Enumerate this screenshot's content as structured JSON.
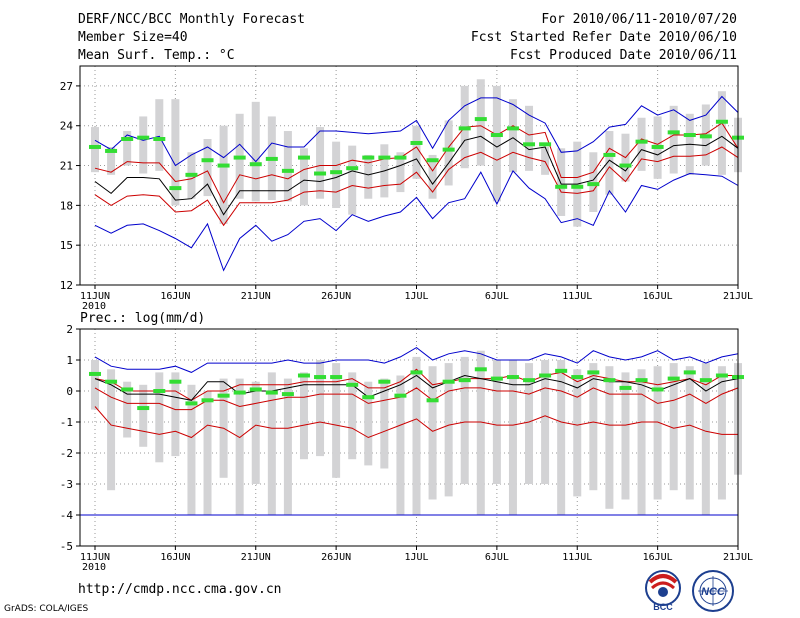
{
  "header": {
    "title": "DERF/NCC/BCC Monthly Forecast",
    "member_size": "Member Size=40",
    "variable": "Mean Surf. Temp.: °C",
    "period": "For 2010/06/11-2010/07/20",
    "start_date": "Fcst Started Refer Date 2010/06/10",
    "produced_date": "Fcst Produced Date 2010/06/11"
  },
  "footer": {
    "url": "http://cmdp.ncc.cma.gov.cn",
    "grads_credit": "GrADS: COLA/IGES",
    "logo_bcc": "BCC",
    "logo_ncc": "NCC"
  },
  "colors": {
    "ensemble_max_min": "#0000cc",
    "spread_red": "#cc0000",
    "ensemble_mean": "#000000",
    "observed_green": "#33dd33",
    "box_gray": "#d3d3d5"
  },
  "chart_data": [
    {
      "type": "line",
      "title": "Mean Surf. Temp.: °C",
      "ylim": [
        12,
        28.5
      ],
      "yticks": [
        12,
        15,
        18,
        21,
        24,
        27
      ],
      "xlim": [
        0,
        40
      ],
      "xticks": [
        {
          "day": 0,
          "label": "11JUN",
          "sub": "2010"
        },
        {
          "day": 5,
          "label": "16JUN"
        },
        {
          "day": 10,
          "label": "21JUN"
        },
        {
          "day": 15,
          "label": "26JUN"
        },
        {
          "day": 20,
          "label": "1JUL"
        },
        {
          "day": 25,
          "label": "6JUL"
        },
        {
          "day": 30,
          "label": "11JUL"
        },
        {
          "day": 35,
          "label": "16JUL"
        },
        {
          "day": 40,
          "label": "21JUL"
        }
      ],
      "series": [
        {
          "name": "max",
          "values": [
            16.5,
            15.9,
            16.5,
            16.6,
            16.1,
            15.5,
            14.8,
            16.6,
            13.1,
            15.5,
            16.5,
            15.3,
            15.8,
            16.8,
            17.0,
            16.1,
            17.3,
            16.8,
            17.2,
            17.5,
            18.6,
            17.0,
            18.2,
            18.5,
            20.5,
            18.1,
            20.6,
            19.3,
            18.5,
            16.7,
            17.0,
            16.5,
            19.1,
            17.5,
            19.5,
            19.2,
            19.9,
            20.4,
            20.3,
            20.2,
            19.5
          ],
          "color_key": "ensemble_max_min",
          "role": "min"
        },
        {
          "name": "upper",
          "values": [
            22.9,
            22.2,
            23.3,
            22.9,
            23.2,
            21.0,
            21.8,
            22.4,
            21.6,
            22.6,
            21.3,
            22.7,
            22.4,
            22.4,
            23.6,
            23.6,
            23.5,
            23.4,
            23.5,
            23.6,
            24.4,
            22.3,
            24.4,
            25.5,
            26.1,
            26.1,
            25.6,
            24.8,
            24.2,
            22.0,
            22.1,
            22.8,
            23.9,
            24.1,
            25.5,
            24.8,
            25.2,
            24.4,
            24.8,
            26.2,
            25.0
          ],
          "color_key": "ensemble_max_min",
          "role": "max"
        },
        {
          "name": "upper_red",
          "values": [
            20.8,
            20.5,
            21.3,
            21.2,
            21.2,
            19.8,
            20.0,
            20.6,
            18.2,
            20.3,
            20.0,
            20.3,
            20.0,
            20.7,
            21.0,
            21.0,
            21.4,
            21.2,
            21.5,
            21.6,
            22.4,
            20.6,
            22.4,
            23.9,
            24.0,
            23.3,
            24.0,
            23.3,
            23.5,
            20.1,
            20.1,
            20.5,
            22.3,
            21.6,
            23.0,
            22.6,
            23.3,
            23.3,
            23.4,
            24.2,
            22.3
          ],
          "color_key": "spread_red",
          "role": "mean+std"
        },
        {
          "name": "mean",
          "values": [
            19.8,
            18.9,
            20.1,
            20.1,
            20.0,
            18.4,
            18.5,
            19.6,
            17.3,
            19.1,
            19.1,
            19.1,
            19.1,
            19.9,
            19.8,
            20.1,
            20.6,
            20.3,
            20.6,
            21.0,
            21.5,
            19.6,
            21.2,
            22.9,
            23.2,
            22.4,
            23.1,
            22.2,
            22.4,
            19.6,
            19.6,
            19.9,
            21.4,
            20.6,
            22.2,
            21.8,
            22.5,
            22.6,
            22.5,
            23.2,
            22.3
          ],
          "color_key": "ensemble_mean",
          "role": "mean"
        },
        {
          "name": "lower_red",
          "values": [
            18.8,
            18.0,
            18.7,
            18.8,
            18.7,
            17.5,
            17.6,
            18.4,
            16.5,
            18.2,
            18.2,
            18.2,
            18.4,
            19.0,
            19.1,
            19.0,
            19.5,
            19.3,
            19.5,
            19.6,
            20.5,
            19.0,
            20.7,
            21.6,
            22.0,
            21.4,
            22.0,
            21.6,
            21.3,
            19.0,
            18.9,
            19.1,
            20.9,
            19.8,
            21.5,
            21.3,
            21.7,
            21.7,
            21.8,
            22.4,
            21.6
          ],
          "color_key": "spread_red",
          "role": "mean-std"
        },
        {
          "name": "observed",
          "values": [
            22.4,
            22.1,
            23.0,
            23.1,
            23.0,
            19.3,
            20.3,
            21.4,
            21.0,
            21.6,
            21.1,
            21.5,
            20.6,
            21.6,
            20.4,
            20.5,
            20.8,
            21.6,
            21.6,
            21.6,
            22.7,
            21.4,
            22.2,
            23.8,
            24.5,
            23.3,
            23.8,
            22.6,
            22.6,
            19.4,
            19.4,
            19.6,
            21.8,
            21.0,
            22.8,
            22.4,
            23.5,
            23.3,
            23.2,
            24.3,
            23.1
          ],
          "color_key": "observed_green",
          "role": "observed"
        }
      ],
      "boxes": [
        [
          20.5,
          23.9
        ],
        [
          20.3,
          22.4
        ],
        [
          21.0,
          23.6
        ],
        [
          20.4,
          24.7
        ],
        [
          20.6,
          26.0
        ],
        [
          18.0,
          26.0
        ],
        [
          18.5,
          22.0
        ],
        [
          18.7,
          23.0
        ],
        [
          16.6,
          24.0
        ],
        [
          18.5,
          24.9
        ],
        [
          18.3,
          25.8
        ],
        [
          18.4,
          24.7
        ],
        [
          18.3,
          23.6
        ],
        [
          18.0,
          22.3
        ],
        [
          18.5,
          23.9
        ],
        [
          17.8,
          22.8
        ],
        [
          17.3,
          22.5
        ],
        [
          18.5,
          21.8
        ],
        [
          18.6,
          22.6
        ],
        [
          19.0,
          22.0
        ],
        [
          20.0,
          24.0
        ],
        [
          18.5,
          21.8
        ],
        [
          19.5,
          24.4
        ],
        [
          20.8,
          27.0
        ],
        [
          21.0,
          27.5
        ],
        [
          18.3,
          27.0
        ],
        [
          20.5,
          26.0
        ],
        [
          20.6,
          25.5
        ],
        [
          20.3,
          22.4
        ],
        [
          17.2,
          22.3
        ],
        [
          16.4,
          22.8
        ],
        [
          17.5,
          22.0
        ],
        [
          18.8,
          23.6
        ],
        [
          19.8,
          23.4
        ],
        [
          20.6,
          24.6
        ],
        [
          20.0,
          24.7
        ],
        [
          20.4,
          25.5
        ],
        [
          20.3,
          24.9
        ],
        [
          21.0,
          25.6
        ],
        [
          20.3,
          26.6
        ],
        [
          20.5,
          24.6
        ]
      ]
    },
    {
      "type": "line",
      "title": "Prec.: log(mm/d)",
      "ylim": [
        -5,
        2
      ],
      "yticks": [
        -5,
        -4,
        -3,
        -2,
        -1,
        0,
        1,
        2
      ],
      "xlim": [
        0,
        40
      ],
      "xticks": [
        {
          "day": 0,
          "label": "11JUN",
          "sub": "2010"
        },
        {
          "day": 5,
          "label": "16JUN"
        },
        {
          "day": 10,
          "label": "21JUN"
        },
        {
          "day": 15,
          "label": "26JUN"
        },
        {
          "day": 20,
          "label": "1JUL"
        },
        {
          "day": 25,
          "label": "6JUL"
        },
        {
          "day": 30,
          "label": "11JUL"
        },
        {
          "day": 35,
          "label": "16JUL"
        },
        {
          "day": 40,
          "label": "21JUL"
        }
      ],
      "min_level": -4,
      "series": [
        {
          "name": "upper",
          "values": [
            1.1,
            0.8,
            0.7,
            0.7,
            0.7,
            0.8,
            0.6,
            0.9,
            0.9,
            0.9,
            0.9,
            0.9,
            1.0,
            0.9,
            0.9,
            1.0,
            1.0,
            1.0,
            0.9,
            1.1,
            1.4,
            1.0,
            1.2,
            1.3,
            1.2,
            1.0,
            1.0,
            1.0,
            1.2,
            1.1,
            0.9,
            1.3,
            1.1,
            1.0,
            1.1,
            1.3,
            1.0,
            1.1,
            0.9,
            1.1,
            1.2
          ],
          "color_key": "ensemble_max_min",
          "role": "max"
        },
        {
          "name": "upper_red",
          "values": [
            0.4,
            0.3,
            0.0,
            0.0,
            0.0,
            0.0,
            -0.3,
            0.0,
            0.0,
            0.2,
            0.2,
            0.2,
            0.2,
            0.3,
            0.3,
            0.3,
            0.4,
            0.1,
            0.1,
            0.3,
            0.7,
            0.2,
            0.3,
            0.4,
            0.4,
            0.4,
            0.5,
            0.3,
            0.5,
            0.6,
            0.3,
            0.5,
            0.4,
            0.3,
            0.3,
            0.2,
            0.3,
            0.4,
            0.2,
            0.5,
            0.5
          ],
          "color_key": "spread_red",
          "role": "mean+std"
        },
        {
          "name": "mean",
          "values": [
            0.4,
            0.2,
            -0.1,
            -0.1,
            -0.1,
            -0.2,
            -0.3,
            0.3,
            0.3,
            -0.1,
            0.0,
            0.0,
            0.1,
            0.2,
            0.2,
            0.2,
            0.2,
            -0.2,
            0.0,
            0.2,
            0.5,
            0.1,
            0.3,
            0.5,
            0.4,
            0.3,
            0.2,
            0.2,
            0.4,
            0.3,
            0.1,
            0.4,
            0.3,
            0.3,
            0.2,
            0.0,
            0.2,
            0.4,
            0.0,
            0.3,
            0.4
          ],
          "color_key": "ensemble_mean",
          "role": "mean"
        },
        {
          "name": "lower_red",
          "values": [
            0.1,
            -0.2,
            -0.4,
            -0.4,
            -0.4,
            -0.6,
            -0.6,
            -0.3,
            -0.3,
            -0.5,
            -0.4,
            -0.3,
            -0.2,
            -0.2,
            -0.1,
            -0.1,
            -0.1,
            -0.4,
            -0.3,
            -0.2,
            0.1,
            -0.3,
            0.0,
            0.1,
            0.1,
            0.0,
            0.0,
            -0.1,
            0.1,
            0.0,
            -0.2,
            0.1,
            -0.1,
            -0.1,
            -0.1,
            -0.4,
            -0.3,
            -0.1,
            -0.4,
            -0.1,
            0.1
          ],
          "color_key": "spread_red",
          "role": "mean-std"
        },
        {
          "name": "lower",
          "values": [
            -0.5,
            -1.1,
            -1.2,
            -1.3,
            -1.4,
            -1.3,
            -1.5,
            -1.1,
            -1.2,
            -1.5,
            -1.1,
            -1.2,
            -1.2,
            -1.1,
            -1.0,
            -1.1,
            -1.2,
            -1.5,
            -1.3,
            -1.1,
            -0.9,
            -1.3,
            -1.1,
            -1.0,
            -1.0,
            -1.1,
            -1.1,
            -1.0,
            -0.8,
            -1.0,
            -1.1,
            -1.0,
            -1.1,
            -1.1,
            -1.0,
            -1.0,
            -1.2,
            -1.1,
            -1.3,
            -1.4,
            -1.4
          ],
          "color_key": "spread_red",
          "role": "min"
        },
        {
          "name": "observed",
          "values": [
            0.55,
            0.3,
            0.05,
            -0.55,
            0.0,
            0.3,
            -0.4,
            -0.3,
            -0.15,
            -0.05,
            0.05,
            -0.05,
            -0.1,
            0.5,
            0.45,
            0.45,
            0.2,
            -0.2,
            0.3,
            -0.15,
            0.6,
            -0.3,
            0.3,
            0.35,
            0.7,
            0.4,
            0.45,
            0.35,
            0.5,
            0.65,
            0.45,
            0.6,
            0.35,
            0.1,
            0.35,
            0.05,
            0.4,
            0.6,
            0.35,
            0.5,
            0.45
          ],
          "color_key": "observed_green",
          "role": "observed"
        }
      ],
      "boxes": [
        [
          -0.6,
          1.0
        ],
        [
          -3.2,
          0.7
        ],
        [
          -1.5,
          0.3
        ],
        [
          -1.8,
          0.2
        ],
        [
          -2.3,
          0.6
        ],
        [
          -2.1,
          0.6
        ],
        [
          -4.0,
          0.2
        ],
        [
          -4.0,
          0.0
        ],
        [
          -2.8,
          0.4
        ],
        [
          -4.0,
          0.4
        ],
        [
          -3.0,
          0.3
        ],
        [
          -4.0,
          0.6
        ],
        [
          -4.0,
          0.4
        ],
        [
          -2.2,
          0.6
        ],
        [
          -2.1,
          1.0
        ],
        [
          -2.8,
          0.9
        ],
        [
          -2.2,
          0.6
        ],
        [
          -2.4,
          0.3
        ],
        [
          -2.5,
          0.4
        ],
        [
          -4.0,
          0.5
        ],
        [
          -4.0,
          1.1
        ],
        [
          -3.5,
          0.8
        ],
        [
          -3.4,
          0.9
        ],
        [
          -3.0,
          1.1
        ],
        [
          -4.0,
          1.3
        ],
        [
          -3.0,
          1.0
        ],
        [
          -4.0,
          1.0
        ],
        [
          -3.0,
          0.9
        ],
        [
          -3.0,
          1.0
        ],
        [
          -4.0,
          1.0
        ],
        [
          -3.4,
          0.7
        ],
        [
          -3.2,
          0.9
        ],
        [
          -3.8,
          0.8
        ],
        [
          -3.5,
          0.6
        ],
        [
          -4.0,
          0.7
        ],
        [
          -3.5,
          0.8
        ],
        [
          -3.2,
          0.9
        ],
        [
          -3.5,
          0.8
        ],
        [
          -4.0,
          0.9
        ],
        [
          -3.5,
          0.8
        ],
        [
          -2.7,
          0.9
        ]
      ]
    }
  ]
}
